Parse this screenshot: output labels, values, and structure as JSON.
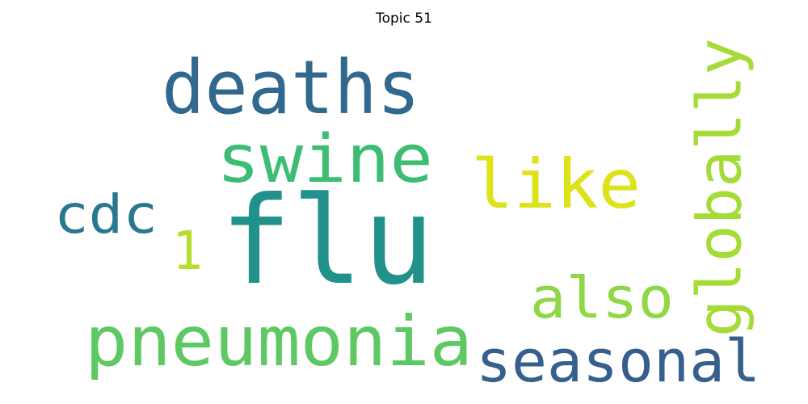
{
  "title": "Topic 51",
  "chart_data": {
    "type": "wordcloud",
    "title": "Topic 51",
    "words": [
      {
        "text": "flu",
        "rank": 1,
        "color": "#21918c"
      },
      {
        "text": "deaths",
        "rank": 2,
        "color": "#31688e"
      },
      {
        "text": "swine",
        "rank": 3,
        "color": "#3dbc74"
      },
      {
        "text": "pneumonia",
        "rank": 4,
        "color": "#5ec962"
      },
      {
        "text": "seasonal",
        "rank": 5,
        "color": "#355f8d"
      },
      {
        "text": "like",
        "rank": 6,
        "color": "#dde318"
      },
      {
        "text": "globally",
        "rank": 7,
        "color": "#a5db36"
      },
      {
        "text": "also",
        "rank": 8,
        "color": "#8fd744"
      },
      {
        "text": "cdc",
        "rank": 9,
        "color": "#2a788e"
      },
      {
        "text": "1",
        "rank": 10,
        "color": "#b5de2b"
      }
    ]
  }
}
